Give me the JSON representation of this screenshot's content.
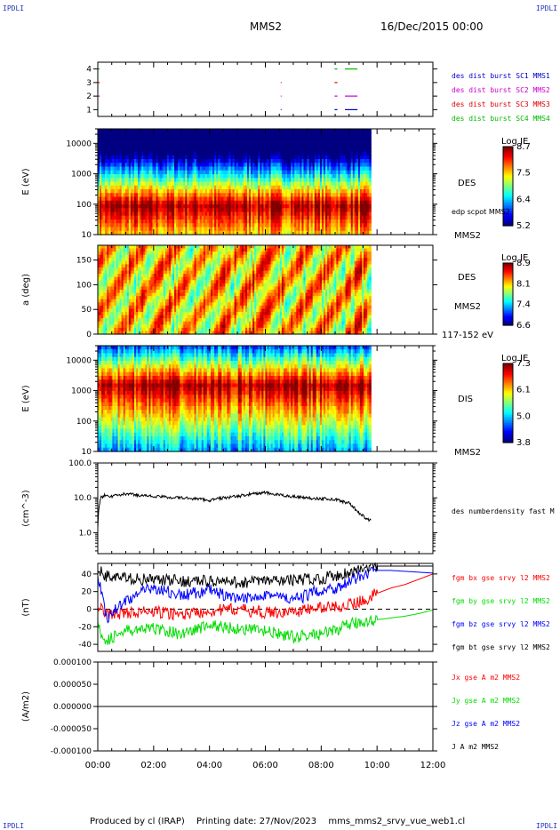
{
  "header": {
    "corner_label": "IPDLI",
    "spacecraft": "MMS2",
    "datetime": "16/Dec/2015 00:00"
  },
  "footer": {
    "produced_by": "Produced by cl (IRAP)",
    "printing_date": "Printing date: 27/Nov/2023",
    "script_name": "mms_mms2_srvy_vue_web1.cl"
  },
  "colors": {
    "mms1": "#0000cc",
    "mms2": "#cc00cc",
    "mms3": "#dd0000",
    "mms4": "#00bb00",
    "bx": "#ff0000",
    "by": "#00dd00",
    "bz": "#0000ff",
    "bt": "#000000"
  },
  "time_axis": {
    "range_hours": [
      0,
      12
    ],
    "tick_labels": [
      "00:00",
      "02:00",
      "04:00",
      "06:00",
      "08:00",
      "10:00",
      "12:00"
    ]
  },
  "chart_data": [
    {
      "id": "burst",
      "type": "scatter",
      "ylim": [
        0.5,
        4.5
      ],
      "ytick_labels": [
        "1",
        "2",
        "3",
        "4"
      ],
      "legend_position": "right",
      "series": [
        {
          "name": "des dist burst SC1 MMS1",
          "row": 1,
          "color": "#0000cc",
          "segments": [
            [
              6.55,
              6.58
            ],
            [
              8.48,
              8.58
            ],
            [
              8.85,
              9.3
            ]
          ]
        },
        {
          "name": "des dist burst SC2 MMS2",
          "row": 2,
          "color": "#cc00cc",
          "segments": [
            [
              0.02,
              0.07
            ],
            [
              6.55,
              6.58
            ],
            [
              8.48,
              8.58
            ],
            [
              8.85,
              9.3
            ]
          ]
        },
        {
          "name": "des dist burst SC3 MMS3",
          "row": 3,
          "color": "#dd0000",
          "segments": [
            [
              0.02,
              0.07
            ],
            [
              6.55,
              6.58
            ],
            [
              8.48,
              8.58
            ]
          ]
        },
        {
          "name": "des dist burst SC4 MMS4",
          "row": 4,
          "color": "#00bb00",
          "segments": [
            [
              0.02,
              0.07
            ],
            [
              8.48,
              8.58
            ],
            [
              8.85,
              9.3
            ]
          ]
        }
      ]
    },
    {
      "id": "des_energy",
      "type": "heatmap",
      "ylabel": "E (eV)",
      "yscale": "log",
      "ylim": [
        10,
        30000
      ],
      "ytick_labels": [
        "10",
        "100",
        "1000",
        "10000"
      ],
      "data_end_hour": 9.78,
      "colorbar": {
        "title": "Log JE",
        "min": 5.2,
        "max": 8.7,
        "tick_labels": [
          "8.7",
          "7.5",
          "6.4",
          "5.2"
        ]
      },
      "right_labels": [
        "DES",
        "edp scpot MMS2",
        "MMS2"
      ],
      "peak_energy_eV": 90
    },
    {
      "id": "des_pitch",
      "type": "heatmap",
      "ylabel": "a (deg)",
      "ylim": [
        0,
        180
      ],
      "ytick_labels": [
        "0",
        "50",
        "100",
        "150"
      ],
      "data_end_hour": 9.78,
      "colorbar": {
        "title": "Log JE",
        "min": 6.6,
        "max": 8.9,
        "tick_labels": [
          "8.9",
          "8.1",
          "7.4",
          "6.6"
        ]
      },
      "right_labels": [
        "DES",
        "MMS2",
        "117-152 eV"
      ]
    },
    {
      "id": "dis_energy",
      "type": "heatmap",
      "ylabel": "E (eV)",
      "yscale": "log",
      "ylim": [
        10,
        30000
      ],
      "ytick_labels": [
        "10",
        "100",
        "1000",
        "10000"
      ],
      "data_end_hour": 9.78,
      "colorbar": {
        "title": "Log JE",
        "min": 3.8,
        "max": 7.3,
        "tick_labels": [
          "7.3",
          "6.1",
          "5.0",
          "3.8"
        ]
      },
      "right_labels": [
        "DIS",
        "MMS2"
      ],
      "peak_energy_eV": 1500
    },
    {
      "id": "density",
      "type": "line",
      "ylabel": "(cm^-3)",
      "yscale": "log",
      "ylim": [
        0.25,
        100
      ],
      "ytick_labels": [
        "1.0",
        "10.0",
        "100.0"
      ],
      "series": [
        {
          "name": "des numberdensity fast M",
          "color": "#000000",
          "x": [
            0.0,
            0.1,
            0.25,
            0.5,
            1.0,
            1.5,
            2.0,
            2.5,
            3.0,
            3.5,
            4.0,
            4.5,
            5.0,
            5.5,
            6.0,
            6.5,
            7.0,
            7.5,
            8.0,
            8.5,
            9.0,
            9.3,
            9.6,
            9.78
          ],
          "y": [
            1.5,
            10,
            12,
            11,
            13,
            12,
            11,
            10.5,
            10,
            9.5,
            8.5,
            10,
            11,
            13,
            14,
            12,
            11,
            10,
            9.5,
            9,
            7,
            4,
            2.5,
            2.2
          ]
        }
      ]
    },
    {
      "id": "fgm",
      "type": "line",
      "ylabel": "(nT)",
      "ylim": [
        -48,
        52
      ],
      "ytick_labels": [
        "-40",
        "-20",
        "0",
        "20",
        "40"
      ],
      "series": [
        {
          "name": "fgm bx gse srvy l2 MMS2",
          "color": "#ff0000",
          "x": [
            0,
            0.3,
            1,
            2,
            3,
            4,
            5,
            6,
            7,
            8,
            8.5,
            9,
            9.5,
            10,
            10.5,
            11,
            11.5,
            12
          ],
          "y": [
            5,
            -6,
            -4,
            -3,
            -6,
            -2,
            0,
            -4,
            -3,
            2,
            3,
            5,
            10,
            18,
            24,
            28,
            34,
            40
          ]
        },
        {
          "name": "fgm by gse srvy l2 MMS2",
          "color": "#00dd00",
          "x": [
            0,
            0.3,
            1,
            2,
            3,
            4,
            5,
            6,
            7,
            8,
            8.5,
            9,
            9.5,
            10,
            10.5,
            11,
            11.5,
            12
          ],
          "y": [
            -20,
            -35,
            -25,
            -22,
            -28,
            -18,
            -22,
            -25,
            -32,
            -28,
            -24,
            -18,
            -14,
            -12,
            -10,
            -8,
            -5,
            -1
          ]
        },
        {
          "name": "fgm bz gse srvy l2 MMS2",
          "color": "#0000ff",
          "x": [
            0,
            0.3,
            1,
            2,
            3,
            4,
            5,
            6,
            7,
            8,
            8.5,
            9,
            9.5,
            10,
            10.5,
            11,
            11.5,
            12
          ],
          "y": [
            40,
            -10,
            10,
            25,
            15,
            22,
            10,
            18,
            10,
            22,
            24,
            30,
            40,
            44,
            44,
            43,
            42,
            41
          ]
        },
        {
          "name": "fgm bt gse srvy l2 MMS2",
          "color": "#000000",
          "x": [
            0,
            0.3,
            1,
            2,
            3,
            4,
            5,
            6,
            7,
            8,
            8.5,
            9,
            9.5,
            10,
            10.5,
            11,
            11.5,
            12
          ],
          "y": [
            45,
            38,
            35,
            33,
            32,
            32,
            30,
            32,
            33,
            35,
            38,
            42,
            46,
            49,
            49,
            49,
            49,
            49
          ]
        }
      ]
    },
    {
      "id": "current",
      "type": "line",
      "ylabel": "(A/m2)",
      "ylim": [
        -0.0001,
        0.0001
      ],
      "ytick_labels": [
        "-0.000100",
        "-0.000050",
        "0.000000",
        "0.000050",
        "0.000100"
      ],
      "series": [
        {
          "name": "Jx gse A m2 MMS2",
          "color": "#ff0000",
          "x": [
            0,
            12
          ],
          "y": [
            0,
            0
          ]
        },
        {
          "name": "Jy gse A m2 MMS2",
          "color": "#00dd00",
          "x": [
            0,
            12
          ],
          "y": [
            0,
            0
          ]
        },
        {
          "name": "Jz gse A m2 MMS2",
          "color": "#0000ff",
          "x": [
            0,
            12
          ],
          "y": [
            0,
            0
          ]
        },
        {
          "name": "J A m2 MMS2",
          "color": "#000000",
          "x": [
            0,
            12
          ],
          "y": [
            0,
            0
          ]
        }
      ]
    }
  ]
}
